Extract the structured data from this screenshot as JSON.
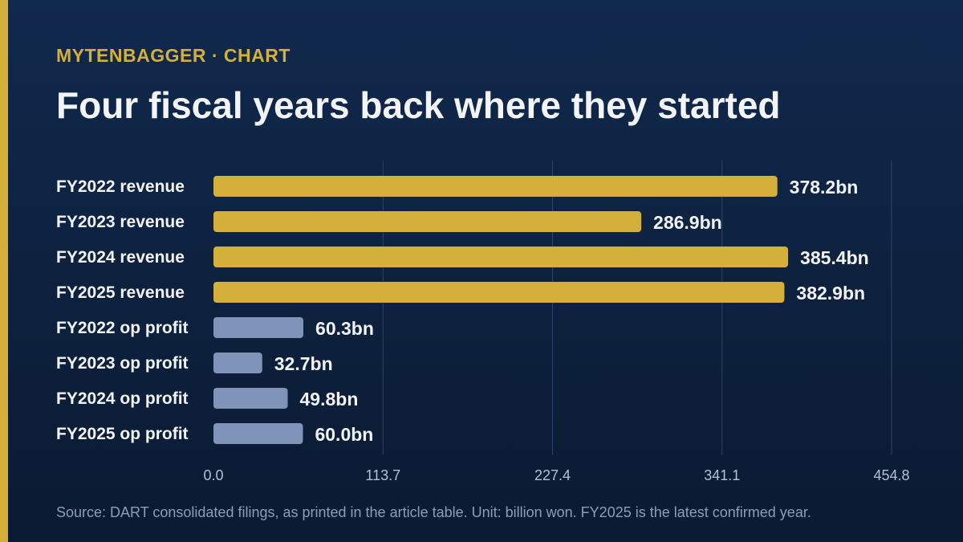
{
  "header": {
    "kicker": "MYTENBAGGER · CHART",
    "title": "Four fiscal years back where they started"
  },
  "footer": {
    "source": "Source: DART consolidated filings, as printed in the article table. Unit: billion won. FY2025 is the latest confirmed year."
  },
  "colors": {
    "accent": "#d4af3a",
    "revenue": "#d4af3a",
    "op_profit": "#7f94b8",
    "grid": "#2c4468",
    "label": "#f2f4f8",
    "tick": "#b4c0d4"
  },
  "chart_data": {
    "type": "bar",
    "orientation": "horizontal",
    "categories": [
      "FY2022 revenue",
      "FY2023 revenue",
      "FY2024 revenue",
      "FY2025 revenue",
      "FY2022 op profit",
      "FY2023 op profit",
      "FY2024 op profit",
      "FY2025 op profit"
    ],
    "values": [
      378.2,
      286.9,
      385.4,
      382.9,
      60.3,
      32.7,
      49.8,
      60.0
    ],
    "value_labels": [
      "378.2bn",
      "286.9bn",
      "385.4bn",
      "382.9bn",
      "60.3bn",
      "32.7bn",
      "49.8bn",
      "60.0bn"
    ],
    "groups": [
      "revenue",
      "revenue",
      "revenue",
      "revenue",
      "op_profit",
      "op_profit",
      "op_profit",
      "op_profit"
    ],
    "xlim": [
      0,
      454.8
    ],
    "xticks": [
      0,
      113.7,
      227.4,
      341.1,
      454.8
    ],
    "xtick_labels": [
      "0.0",
      "113.7",
      "227.4",
      "341.1",
      "454.8"
    ],
    "grid": true
  }
}
